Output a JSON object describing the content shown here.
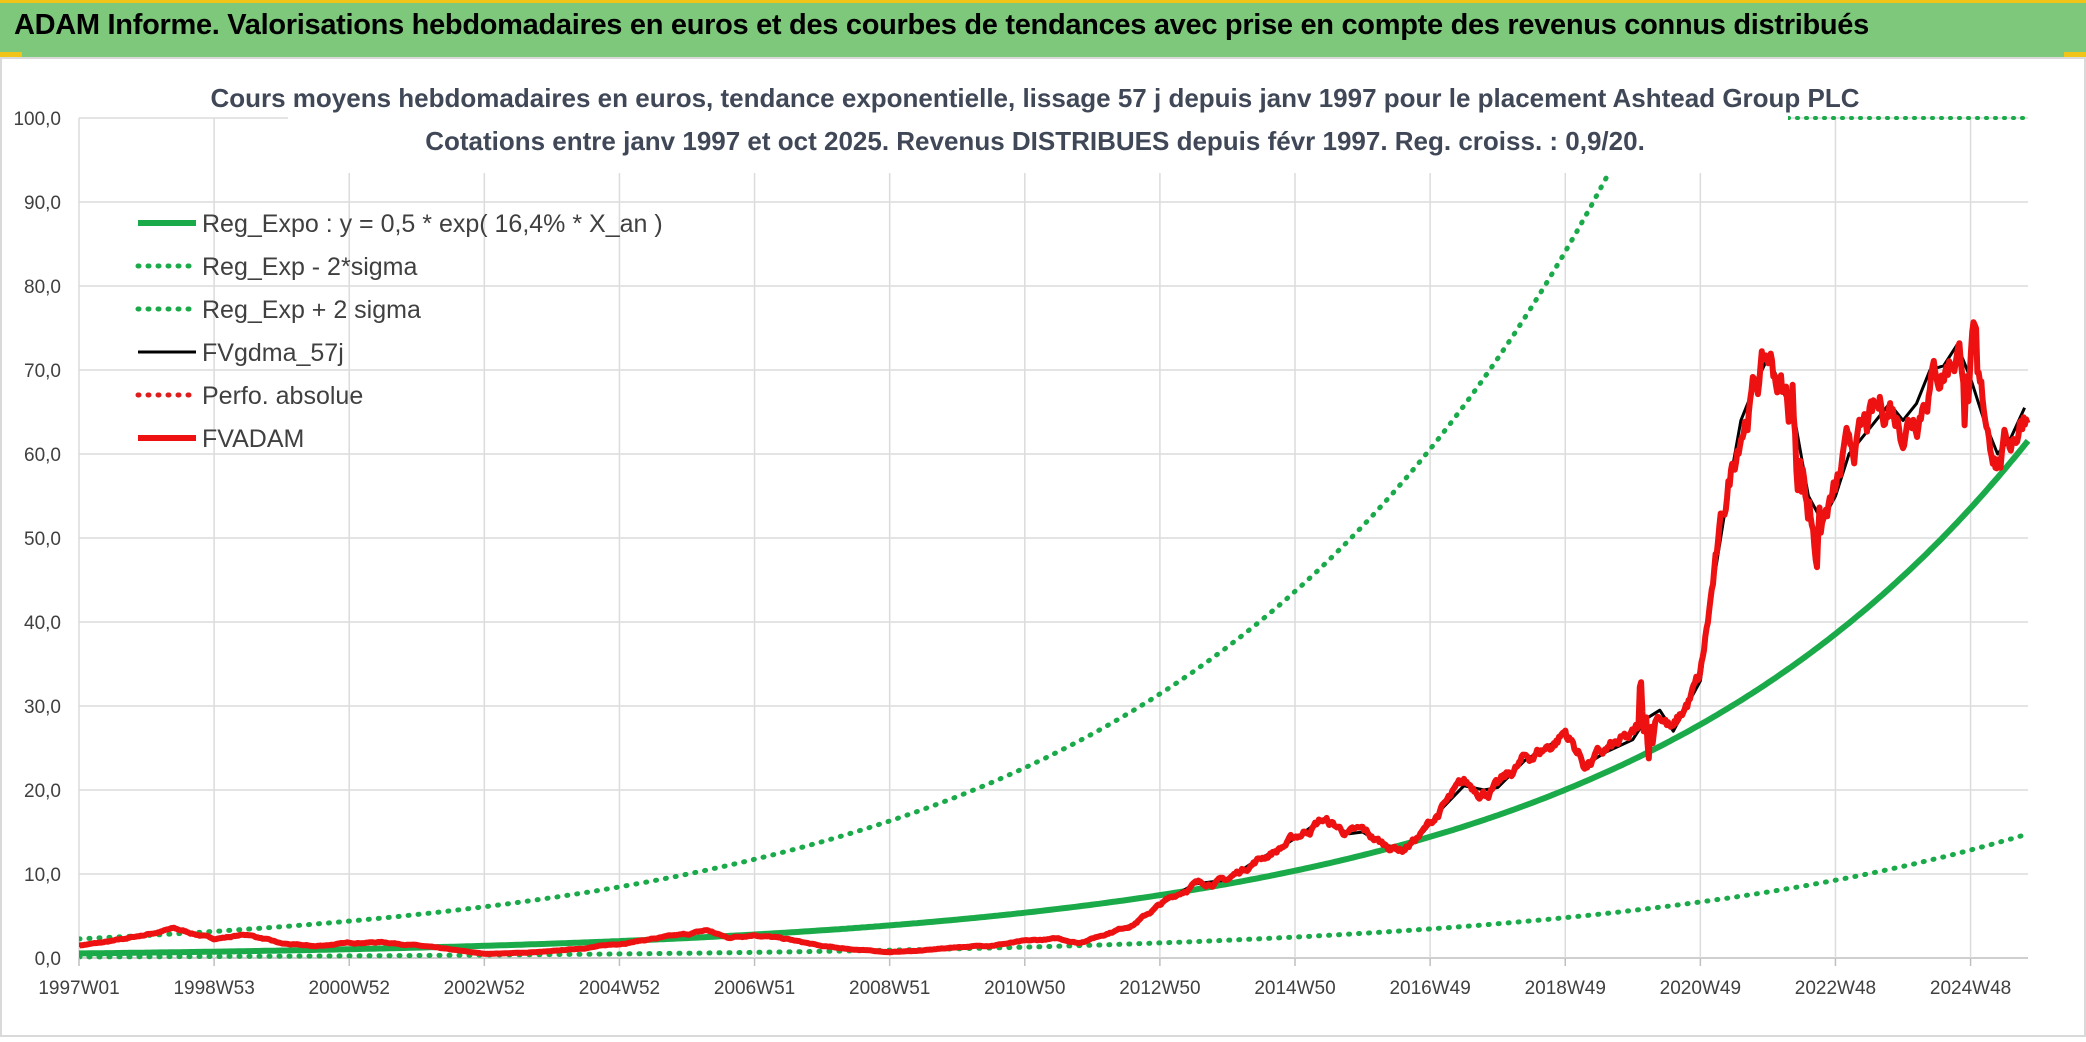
{
  "header": {
    "title": "ADAM Informe. Valorisations hebdomadaires en euros et des courbes de tendances avec prise en compte des revenus connus distribués"
  },
  "chart_data": {
    "type": "line",
    "title": "Cours moyens hebdomadaires en euros, tendance exponentielle, lissage 57 j depuis janv 1997 pour le placement Ashtead Group PLC",
    "subtitle": "Cotations entre janv 1997 et oct 2025. Revenus DISTRIBUES depuis févr 1997. Reg. croiss. : 0,9/20.",
    "xlabel": "",
    "ylabel": "",
    "ylim": [
      0,
      100
    ],
    "xlim": [
      1997.0,
      2025.85
    ],
    "yticks": [
      "0,0",
      "10,0",
      "20,0",
      "30,0",
      "40,0",
      "50,0",
      "60,0",
      "70,0",
      "80,0",
      "90,0",
      "100,0"
    ],
    "xticks": [
      {
        "label": "1997W01",
        "x": 1997.0
      },
      {
        "label": "1998W53",
        "x": 1999.0
      },
      {
        "label": "2000W52",
        "x": 2001.0
      },
      {
        "label": "2002W52",
        "x": 2003.0
      },
      {
        "label": "2004W52",
        "x": 2005.0
      },
      {
        "label": "2006W51",
        "x": 2007.0
      },
      {
        "label": "2008W51",
        "x": 2009.0
      },
      {
        "label": "2010W50",
        "x": 2011.0
      },
      {
        "label": "2012W50",
        "x": 2013.0
      },
      {
        "label": "2014W50",
        "x": 2015.0
      },
      {
        "label": "2016W49",
        "x": 2017.0
      },
      {
        "label": "2018W49",
        "x": 2019.0
      },
      {
        "label": "2020W49",
        "x": 2021.0
      },
      {
        "label": "2022W48",
        "x": 2023.0
      },
      {
        "label": "2024W48",
        "x": 2025.0
      }
    ],
    "grid": true,
    "legend_position": "top-left",
    "series": [
      {
        "name": "Reg_Expo : y = 0,5 * exp( 16,4% *  X_an )",
        "style": "solid-thick",
        "color": "#1aaa4a",
        "trend": {
          "a": 0.5,
          "r": 0.164,
          "x0": 1996.5
        }
      },
      {
        "name": "Reg_Exp - 2*sigma",
        "style": "dotted",
        "color": "#1aaa4a",
        "trend": {
          "a": 0.12,
          "r": 0.164,
          "x0": 1996.5
        }
      },
      {
        "name": "Reg_Exp + 2 sigma",
        "style": "dotted",
        "color": "#1aaa4a",
        "trend": {
          "a": 2.1,
          "r": 0.164,
          "x0": 1996.5
        }
      },
      {
        "name": "FVgdma_57j",
        "style": "solid",
        "color": "#000000",
        "x": [
          1997.0,
          1997.5,
          1998.0,
          1998.4,
          1999.0,
          1999.5,
          2000.0,
          2000.5,
          2001.0,
          2001.5,
          2002.0,
          2002.5,
          2003.0,
          2003.5,
          2004.0,
          2004.5,
          2005.0,
          2005.5,
          2006.0,
          2006.3,
          2006.6,
          2007.0,
          2007.5,
          2008.0,
          2008.5,
          2009.0,
          2009.5,
          2010.0,
          2010.5,
          2011.0,
          2011.5,
          2011.8,
          2012.2,
          2012.6,
          2013.0,
          2013.5,
          2014.0,
          2014.4,
          2014.8,
          2015.1,
          2015.4,
          2015.8,
          2016.0,
          2016.3,
          2016.6,
          2016.9,
          2017.2,
          2017.5,
          2017.8,
          2018.0,
          2018.4,
          2018.8,
          2019.0,
          2019.3,
          2019.6,
          2020.0,
          2020.2,
          2020.4,
          2020.6,
          2021.0,
          2021.2,
          2021.4,
          2021.6,
          2021.8,
          2022.0,
          2022.2,
          2022.4,
          2022.6,
          2022.8,
          2023.0,
          2023.2,
          2023.4,
          2023.6,
          2023.8,
          2024.0,
          2024.2,
          2024.4,
          2024.6,
          2024.8,
          2025.0,
          2025.2,
          2025.4,
          2025.6,
          2025.8
        ],
        "y": [
          1.5,
          2.0,
          2.8,
          3.5,
          2.3,
          2.8,
          1.7,
          1.4,
          1.8,
          1.9,
          1.5,
          1.0,
          0.5,
          0.6,
          0.8,
          1.2,
          1.7,
          2.3,
          2.8,
          3.3,
          2.4,
          2.8,
          2.2,
          1.4,
          1.0,
          0.7,
          0.9,
          1.3,
          1.5,
          2.0,
          2.3,
          1.8,
          2.9,
          4.0,
          6.3,
          8.8,
          9.3,
          11.5,
          13.2,
          14.8,
          16.5,
          14.8,
          15.0,
          13.5,
          13.0,
          15.0,
          18.0,
          20.5,
          20.0,
          20.3,
          23.5,
          25.5,
          27.0,
          23.0,
          24.5,
          26.0,
          28.5,
          29.5,
          27.0,
          33.0,
          45.0,
          55.0,
          64.0,
          68.0,
          71.5,
          68.0,
          64.0,
          55.0,
          52.0,
          55.0,
          60.0,
          62.0,
          64.0,
          66.0,
          64.0,
          66.0,
          70.0,
          70.5,
          73.0,
          69.0,
          64.0,
          60.0,
          62.0,
          65.5
        ]
      },
      {
        "name": "Perfo. absolue",
        "style": "dotted",
        "color": "#e01b1b",
        "x": [],
        "y": []
      },
      {
        "name": "FVADAM",
        "style": "solid-thick",
        "color": "#ee1111",
        "noise": true
      }
    ]
  }
}
